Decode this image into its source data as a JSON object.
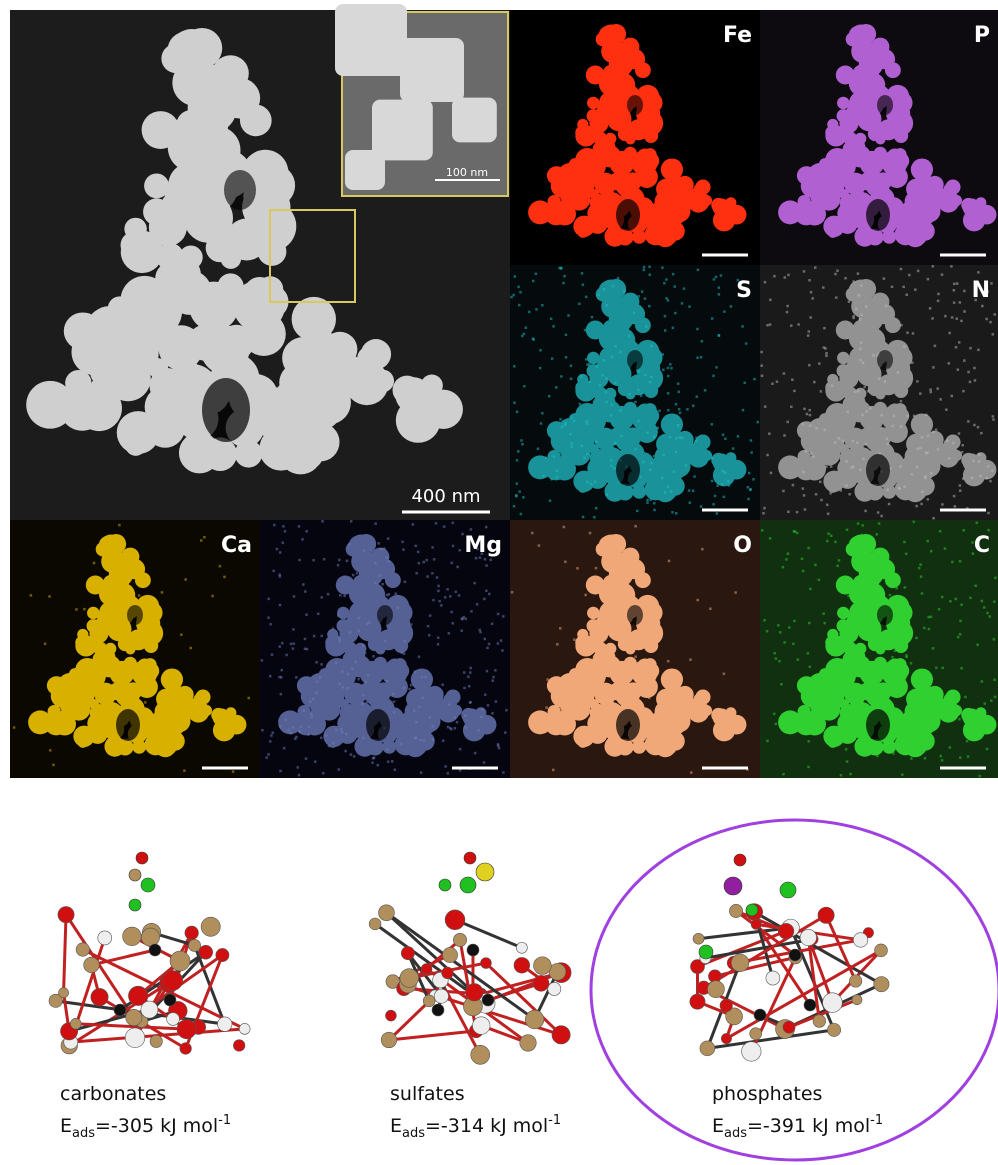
{
  "overview": {
    "inset_scale_bar": "100 nm",
    "scale_bar": "400 nm"
  },
  "maps": [
    {
      "element": "Fe"
    },
    {
      "element": "P"
    },
    {
      "element": "S"
    },
    {
      "element": "N"
    },
    {
      "element": "Ca"
    },
    {
      "element": "Mg"
    },
    {
      "element": "O"
    },
    {
      "element": "C"
    }
  ],
  "captions": [
    {
      "name": "carbonates",
      "symbol": "E",
      "subscript": "ads",
      "energy": "=-305 kJ mol",
      "superscript": "-1"
    },
    {
      "name": "sulfates",
      "symbol": "E",
      "subscript": "ads",
      "energy": "=-314 kJ mol",
      "superscript": "-1"
    },
    {
      "name": "phosphates",
      "symbol": "E",
      "subscript": "ads",
      "energy": "=-391 kJ mol",
      "superscript": "-1"
    }
  ]
}
